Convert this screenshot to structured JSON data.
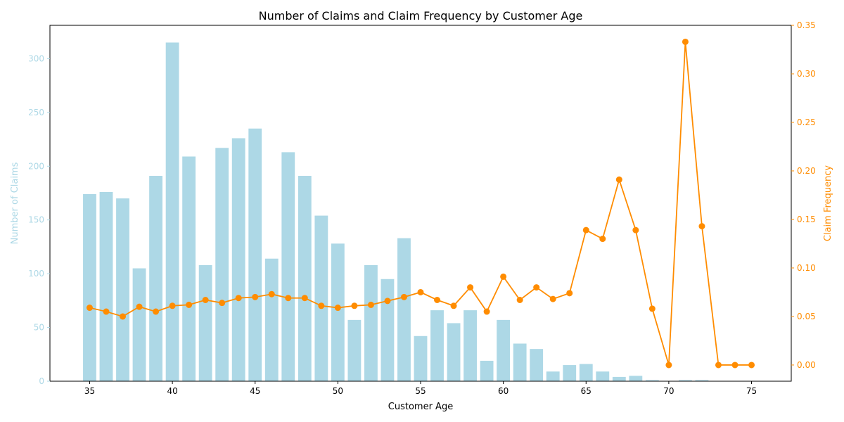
{
  "chart_data": {
    "type": "bar+line",
    "title": "Number of Claims and Claim Frequency by Customer Age",
    "xlabel": "Customer Age",
    "ylabel_left": "Number of Claims",
    "ylabel_right": "Claim Frequency",
    "x_ticks": [
      35,
      40,
      45,
      50,
      55,
      60,
      65,
      70,
      75
    ],
    "xlim": [
      32.6,
      77.4
    ],
    "y_left_ticks": [
      0,
      50,
      100,
      150,
      200,
      250,
      300
    ],
    "ylim_left": [
      0,
      331
    ],
    "y_right_ticks": [
      "0.00",
      "0.05",
      "0.10",
      "0.15",
      "0.20",
      "0.25",
      "0.30",
      "0.35"
    ],
    "ylim_right": [
      -0.0167,
      0.35
    ],
    "grid": false,
    "colors": {
      "bars": "#add8e6",
      "line": "#ff8c00",
      "left_axis": "#add8e6",
      "right_axis": "#ff8c00"
    },
    "series": [
      {
        "kind": "bar",
        "axis": "left",
        "x": [
          35,
          36,
          37,
          38,
          39,
          40,
          41,
          42,
          43,
          44,
          45,
          46,
          47,
          48,
          49,
          50,
          51,
          52,
          53,
          54,
          55,
          56,
          57,
          58,
          59,
          60,
          61,
          62,
          63,
          64,
          65,
          66,
          67,
          68,
          69,
          70,
          71,
          72,
          73,
          74,
          75
        ],
        "values": [
          174,
          176,
          170,
          105,
          191,
          315,
          209,
          108,
          217,
          226,
          235,
          114,
          213,
          191,
          154,
          128,
          57,
          108,
          95,
          133,
          42,
          66,
          54,
          66,
          19,
          57,
          35,
          30,
          9,
          15,
          16,
          9,
          4,
          5,
          1,
          0,
          1,
          1,
          0,
          0,
          0
        ]
      },
      {
        "kind": "line",
        "axis": "right",
        "x": [
          35,
          36,
          37,
          38,
          39,
          40,
          41,
          42,
          43,
          44,
          45,
          46,
          47,
          48,
          49,
          50,
          51,
          52,
          53,
          54,
          55,
          56,
          57,
          58,
          59,
          60,
          61,
          62,
          63,
          64,
          65,
          66,
          67,
          68,
          69,
          70,
          71,
          72,
          73,
          74,
          75
        ],
        "values": [
          0.059,
          0.055,
          0.05,
          0.06,
          0.055,
          0.061,
          0.062,
          0.067,
          0.064,
          0.069,
          0.07,
          0.073,
          0.069,
          0.069,
          0.061,
          0.059,
          0.061,
          0.062,
          0.066,
          0.07,
          0.075,
          0.067,
          0.061,
          0.08,
          0.055,
          0.091,
          0.067,
          0.08,
          0.068,
          0.074,
          0.139,
          0.13,
          0.191,
          0.139,
          0.058,
          0.0,
          0.333,
          0.143,
          0.0,
          0.0,
          0.0
        ]
      }
    ]
  }
}
